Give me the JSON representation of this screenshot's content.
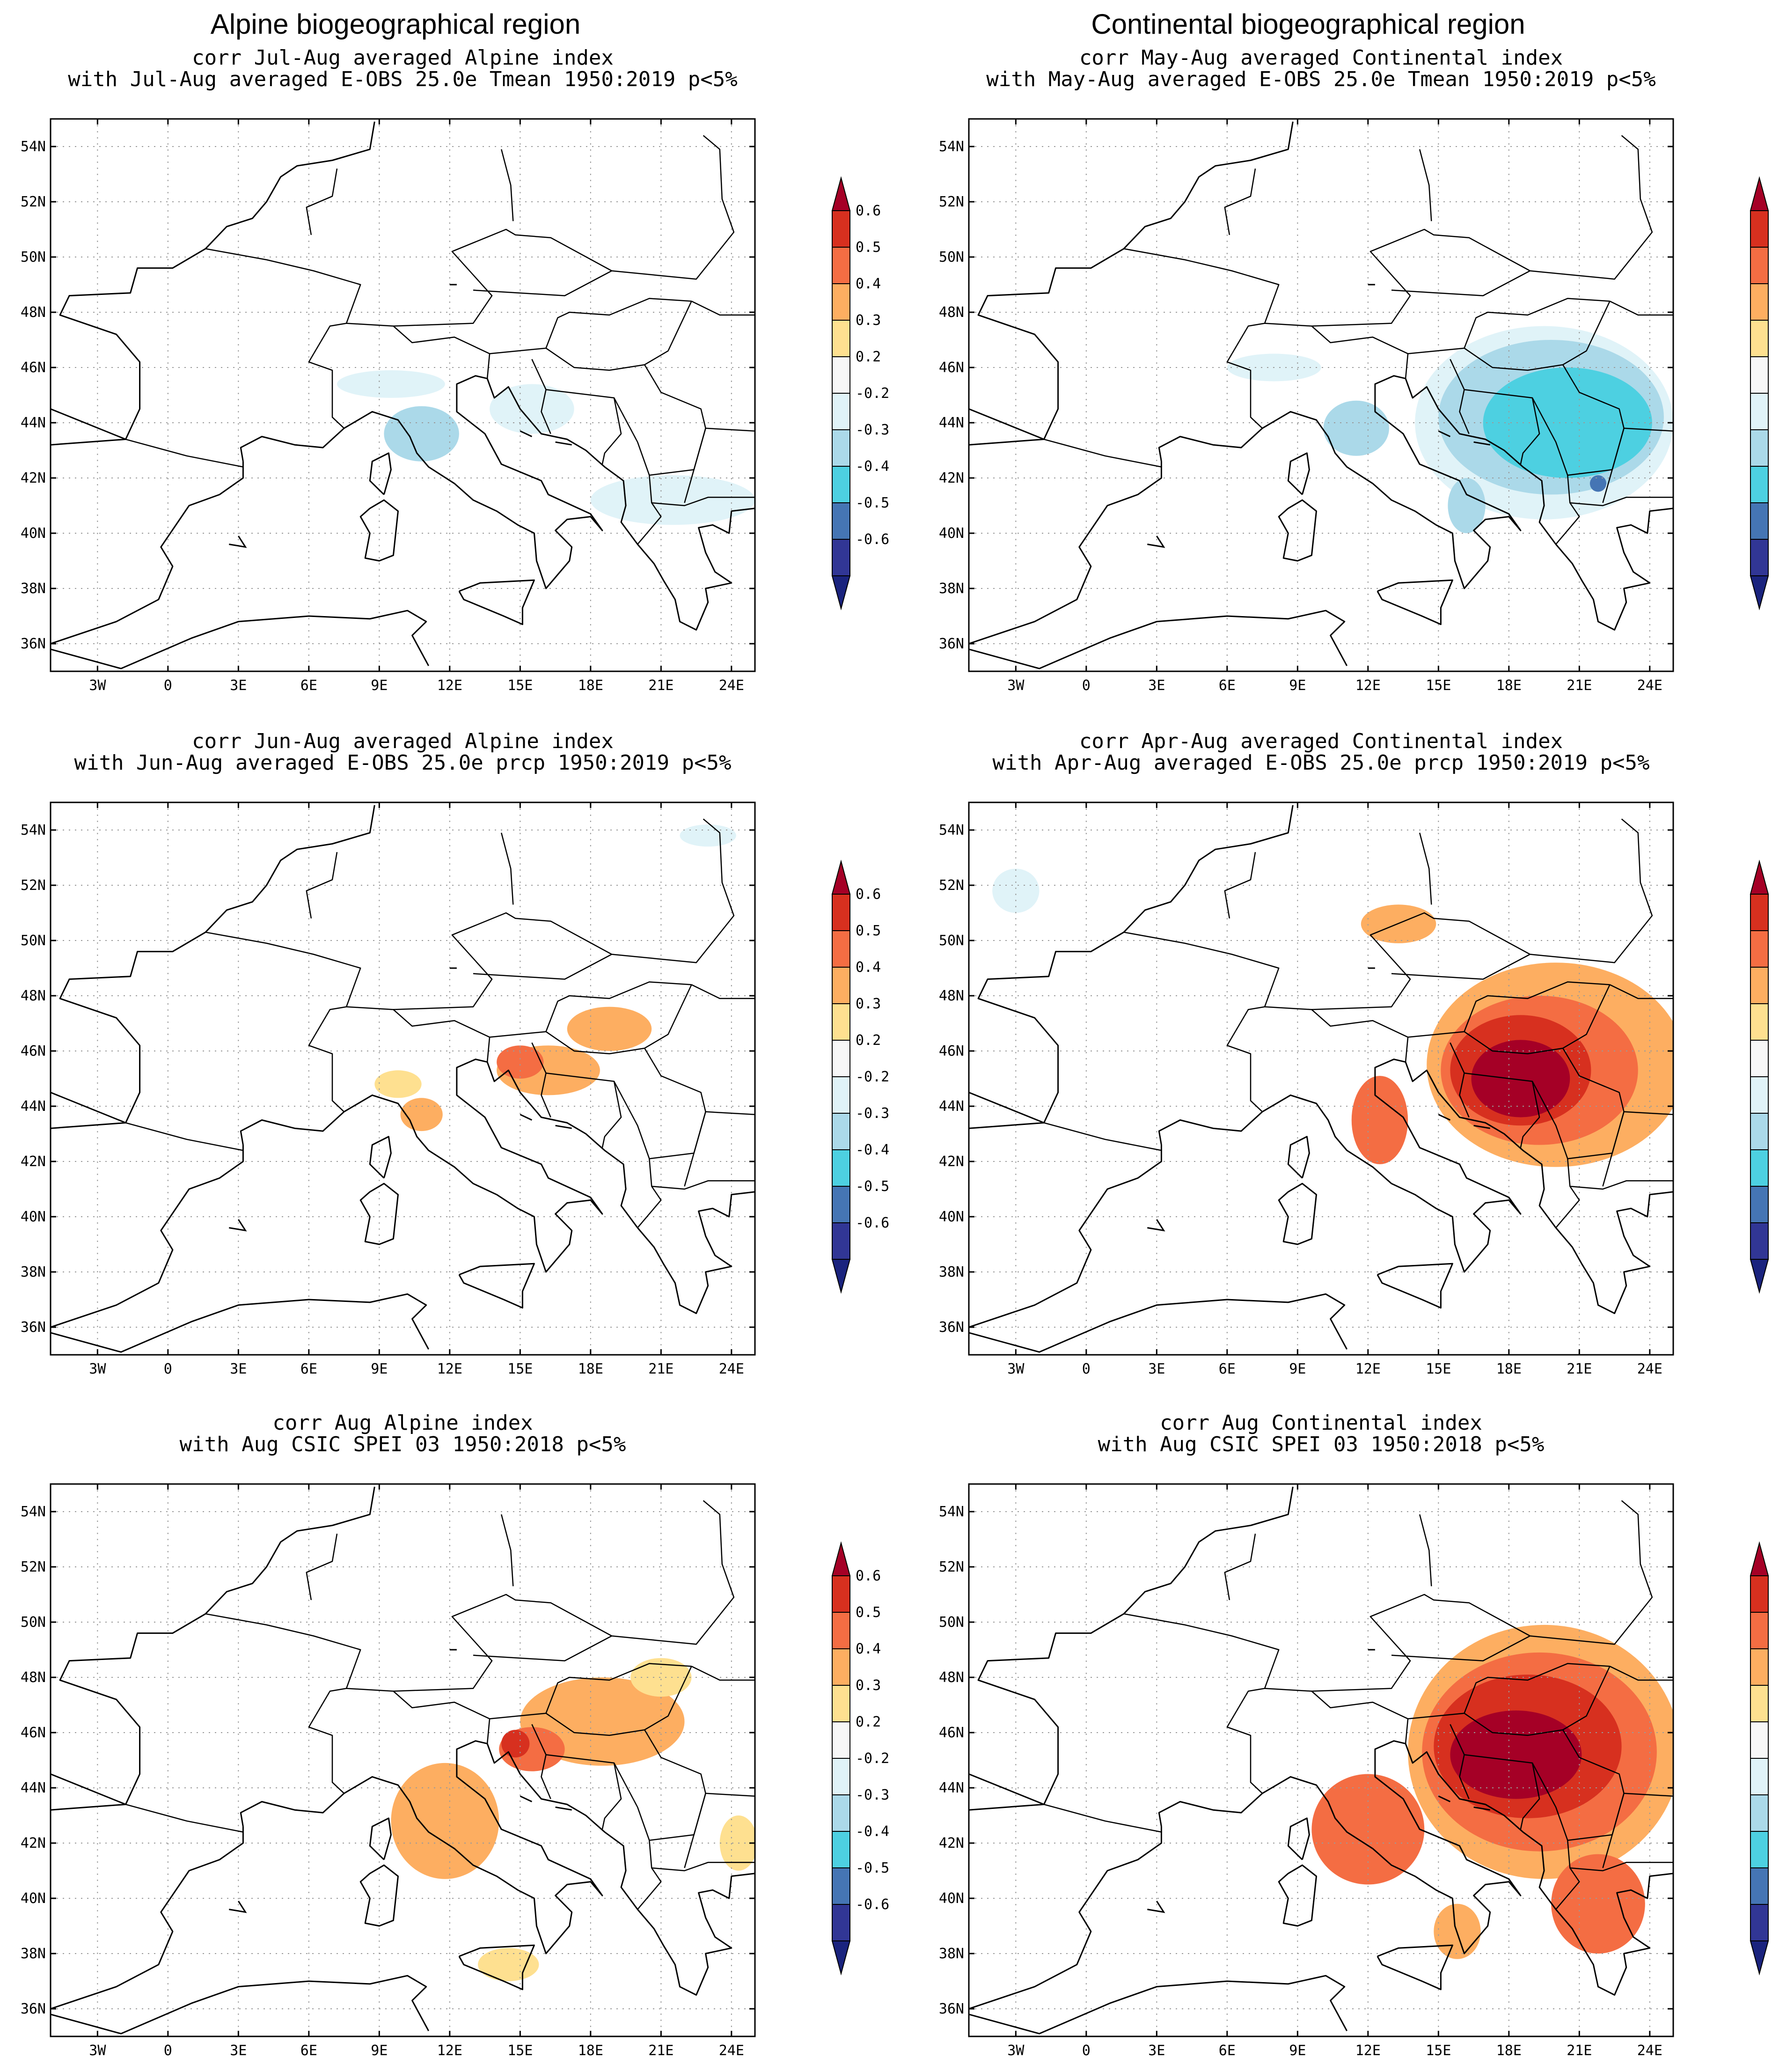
{
  "column_titles": [
    "Alpine biogeographical region",
    "Continental biogeographical region"
  ],
  "axes": {
    "lon_ticks": [
      "3W",
      "0",
      "3E",
      "6E",
      "9E",
      "12E",
      "15E",
      "18E",
      "21E",
      "24E"
    ],
    "lon_values": [
      -3,
      0,
      3,
      6,
      9,
      12,
      15,
      18,
      21,
      24
    ],
    "lat_ticks": [
      "54N",
      "52N",
      "50N",
      "48N",
      "46N",
      "44N",
      "42N",
      "40N",
      "38N",
      "36N"
    ],
    "lat_values": [
      54,
      52,
      50,
      48,
      46,
      44,
      42,
      40,
      38,
      36
    ],
    "lon_range": [
      -5,
      25
    ],
    "lat_range": [
      35,
      55
    ]
  },
  "colorbar": {
    "labels": [
      "0.6",
      "0.5",
      "0.4",
      "0.3",
      "0.2",
      "-0.2",
      "-0.3",
      "-0.4",
      "-0.5",
      "-0.6"
    ],
    "colors": [
      "#a50026",
      "#d7301f",
      "#f46d43",
      "#fdae61",
      "#fee090",
      "#f7f7f7",
      "#e0f3f8",
      "#abd9e9",
      "#4dd0e1",
      "#4575b4",
      "#313695",
      "#1a237e"
    ],
    "top_arrow_color": "#a50026",
    "bottom_arrow_color": "#1a237e"
  },
  "panels": [
    {
      "id": "alp_tmean",
      "title_line1": "corr Jul-Aug averaged Alpine index",
      "title_line2": "with Jul-Aug averaged E-OBS 25.0e Tmean 1950:2019 p<5%",
      "blobs": [
        {
          "lon": 10.8,
          "lat": 43.6,
          "rx": 1.6,
          "ry": 1.0,
          "color": "#abd9e9"
        },
        {
          "lon": 9.5,
          "lat": 45.4,
          "rx": 2.3,
          "ry": 0.5,
          "color": "#e0f3f8"
        },
        {
          "lon": 15.5,
          "lat": 44.5,
          "rx": 1.8,
          "ry": 0.9,
          "color": "#e0f3f8"
        },
        {
          "lon": 21.5,
          "lat": 41.2,
          "rx": 3.5,
          "ry": 0.9,
          "color": "#e0f3f8"
        }
      ]
    },
    {
      "id": "con_tmean",
      "title_line1": "corr May-Aug averaged Continental index",
      "title_line2": "with May-Aug averaged E-OBS 25.0e Tmean 1950:2019 p<5%",
      "blobs": [
        {
          "lon": 19.5,
          "lat": 44.0,
          "rx": 5.5,
          "ry": 3.5,
          "color": "#e0f3f8"
        },
        {
          "lon": 19.8,
          "lat": 44.2,
          "rx": 4.8,
          "ry": 2.8,
          "color": "#abd9e9"
        },
        {
          "lon": 20.5,
          "lat": 44.0,
          "rx": 3.6,
          "ry": 2.0,
          "color": "#4dd0e1"
        },
        {
          "lon": 21.8,
          "lat": 41.8,
          "rx": 0.35,
          "ry": 0.3,
          "color": "#4575b4"
        },
        {
          "lon": 11.5,
          "lat": 43.8,
          "rx": 1.4,
          "ry": 1.0,
          "color": "#abd9e9"
        },
        {
          "lon": 8.0,
          "lat": 46.0,
          "rx": 2.0,
          "ry": 0.5,
          "color": "#e0f3f8"
        },
        {
          "lon": 16.2,
          "lat": 41.0,
          "rx": 0.8,
          "ry": 1.0,
          "color": "#abd9e9"
        }
      ]
    },
    {
      "id": "alp_prcp",
      "title_line1": "corr Jun-Aug averaged Alpine index",
      "title_line2": "with Jun-Aug averaged E-OBS 25.0e prcp 1950:2019 p<5%",
      "blobs": [
        {
          "lon": 18.8,
          "lat": 46.8,
          "rx": 1.8,
          "ry": 0.8,
          "color": "#fdae61"
        },
        {
          "lon": 16.2,
          "lat": 45.3,
          "rx": 2.2,
          "ry": 0.9,
          "color": "#fdae61"
        },
        {
          "lon": 15.0,
          "lat": 45.6,
          "rx": 1.0,
          "ry": 0.6,
          "color": "#f46d43"
        },
        {
          "lon": 10.8,
          "lat": 43.7,
          "rx": 0.9,
          "ry": 0.6,
          "color": "#fdae61"
        },
        {
          "lon": 9.8,
          "lat": 44.8,
          "rx": 1.0,
          "ry": 0.5,
          "color": "#fee090"
        },
        {
          "lon": 23.0,
          "lat": 53.8,
          "rx": 1.2,
          "ry": 0.4,
          "color": "#e0f3f8"
        }
      ]
    },
    {
      "id": "con_prcp",
      "title_line1": "corr Apr-Aug averaged Continental index",
      "title_line2": "with Apr-Aug averaged E-OBS 25.0e prcp 1950:2019 p<5%",
      "blobs": [
        {
          "lon": 20.0,
          "lat": 45.5,
          "rx": 5.5,
          "ry": 3.7,
          "color": "#fdae61"
        },
        {
          "lon": 19.3,
          "lat": 45.3,
          "rx": 4.2,
          "ry": 2.7,
          "color": "#f46d43"
        },
        {
          "lon": 18.5,
          "lat": 45.3,
          "rx": 3.0,
          "ry": 2.0,
          "color": "#d7301f"
        },
        {
          "lon": 18.5,
          "lat": 45.0,
          "rx": 2.1,
          "ry": 1.4,
          "color": "#a50026"
        },
        {
          "lon": 12.5,
          "lat": 43.5,
          "rx": 1.2,
          "ry": 1.6,
          "color": "#f46d43"
        },
        {
          "lon": 13.3,
          "lat": 50.6,
          "rx": 1.6,
          "ry": 0.7,
          "color": "#fdae61"
        },
        {
          "lon": -3.0,
          "lat": 51.8,
          "rx": 1.0,
          "ry": 0.8,
          "color": "#e0f3f8"
        }
      ]
    },
    {
      "id": "alp_spei",
      "title_line1": "corr Aug Alpine index",
      "title_line2": "with Aug CSIC SPEI 03 1950:2018 p<5%",
      "blobs": [
        {
          "lon": 18.5,
          "lat": 46.4,
          "rx": 3.5,
          "ry": 1.6,
          "color": "#fdae61"
        },
        {
          "lon": 11.8,
          "lat": 42.8,
          "rx": 2.3,
          "ry": 2.1,
          "color": "#fdae61"
        },
        {
          "lon": 15.5,
          "lat": 45.4,
          "rx": 1.4,
          "ry": 0.8,
          "color": "#f46d43"
        },
        {
          "lon": 14.8,
          "lat": 45.6,
          "rx": 0.6,
          "ry": 0.5,
          "color": "#d7301f"
        },
        {
          "lon": 14.5,
          "lat": 37.6,
          "rx": 1.3,
          "ry": 0.6,
          "color": "#fee090"
        },
        {
          "lon": 24.3,
          "lat": 42.0,
          "rx": 0.8,
          "ry": 1.0,
          "color": "#fee090"
        },
        {
          "lon": 21.0,
          "lat": 48.0,
          "rx": 1.3,
          "ry": 0.7,
          "color": "#fee090"
        }
      ]
    },
    {
      "id": "con_spei",
      "title_line1": "corr Aug Continental index",
      "title_line2": "with Aug CSIC SPEI 03 1950:2018 p<5%",
      "blobs": [
        {
          "lon": 19.5,
          "lat": 45.3,
          "rx": 5.8,
          "ry": 4.6,
          "color": "#fdae61"
        },
        {
          "lon": 19.3,
          "lat": 45.3,
          "rx": 5.0,
          "ry": 3.6,
          "color": "#f46d43"
        },
        {
          "lon": 18.8,
          "lat": 45.5,
          "rx": 4.0,
          "ry": 2.6,
          "color": "#d7301f"
        },
        {
          "lon": 18.3,
          "lat": 45.2,
          "rx": 2.8,
          "ry": 1.6,
          "color": "#a50026"
        },
        {
          "lon": 12.0,
          "lat": 42.5,
          "rx": 2.4,
          "ry": 2.0,
          "color": "#f46d43"
        },
        {
          "lon": 21.8,
          "lat": 39.8,
          "rx": 2.0,
          "ry": 1.8,
          "color": "#f46d43"
        },
        {
          "lon": 15.8,
          "lat": 38.8,
          "rx": 1.0,
          "ry": 1.0,
          "color": "#fdae61"
        }
      ]
    }
  ]
}
